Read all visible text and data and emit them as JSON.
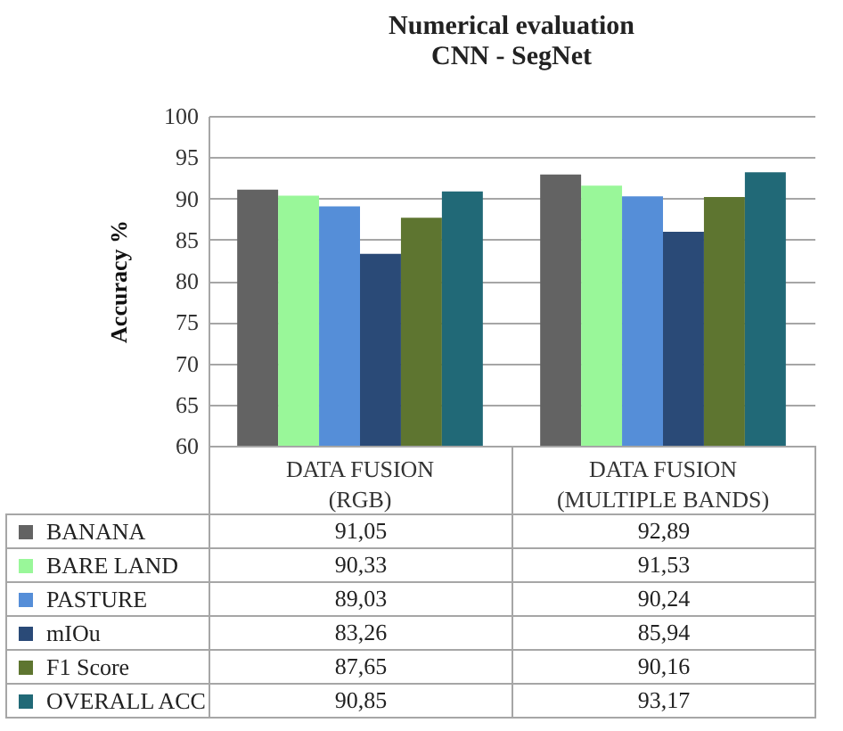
{
  "chart_data": {
    "type": "bar",
    "title": "Numerical evaluation",
    "subtitle": "CNN - SegNet",
    "ylabel": "Accuracy %",
    "categories": [
      "DATA FUSION (RGB)",
      "DATA FUSION (MULTIPLE BANDS)"
    ],
    "series": [
      {
        "name": "BANANA",
        "color": "#636363",
        "values": [
          91.05,
          92.89
        ],
        "value_labels": [
          "91,05",
          "92,89"
        ]
      },
      {
        "name": "BARE LAND",
        "color": "#99f799",
        "values": [
          90.33,
          91.53
        ],
        "value_labels": [
          "90,33",
          "91,53"
        ]
      },
      {
        "name": "PASTURE",
        "color": "#558ed8",
        "values": [
          89.03,
          90.24
        ],
        "value_labels": [
          "89,03",
          "90,24"
        ]
      },
      {
        "name": "mIOu",
        "color": "#2a4a77",
        "values": [
          83.26,
          85.94
        ],
        "value_labels": [
          "83,26",
          "85,94"
        ]
      },
      {
        "name": "F1 Score",
        "color": "#5e7530",
        "values": [
          87.65,
          90.16
        ],
        "value_labels": [
          "87,65",
          "90,16"
        ]
      },
      {
        "name": "OVERALL ACC",
        "color": "#216977",
        "values": [
          90.85,
          93.17
        ],
        "value_labels": [
          "90,85",
          "93,17"
        ]
      }
    ],
    "ylim": [
      60,
      100
    ],
    "yticks": [
      60,
      65,
      70,
      75,
      80,
      85,
      90,
      95,
      100
    ],
    "grid": "y",
    "legend": "bottom left"
  }
}
